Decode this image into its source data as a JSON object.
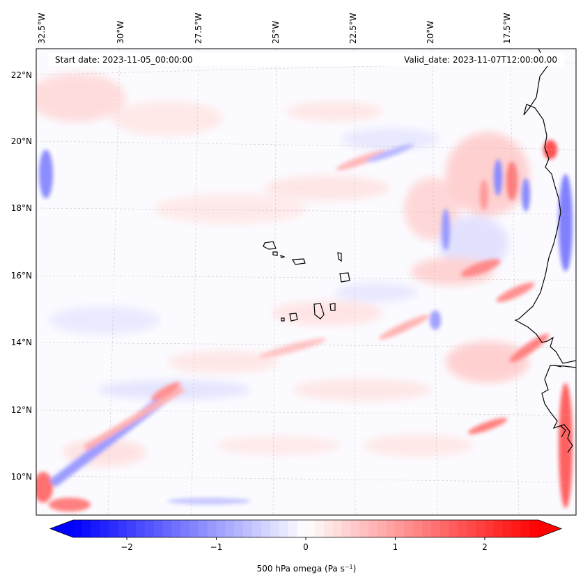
{
  "map": {
    "start_date_label": "Start date: 2023-11-05_00:00:00",
    "valid_date_label": "Valid_date: 2023-11-07T12:00:00.00",
    "lon_labels": [
      "32.5°W",
      "30°W",
      "27.5°W",
      "25°W",
      "22.5°W",
      "20°W",
      "17.5°W"
    ],
    "lat_labels": [
      "22°N",
      "20°N",
      "18°N",
      "16°N",
      "14°N",
      "12°N",
      "10°N"
    ],
    "colors": {
      "positive": "#ff0000",
      "negative": "#0000ff",
      "neutral": "#ffffff",
      "coastline": "#000000"
    }
  },
  "colorbar": {
    "min": -2.6,
    "max": 2.6,
    "tick_values": [
      -2,
      -1,
      0,
      1,
      2
    ],
    "tick_labels": [
      "−2",
      "−1",
      "0",
      "1",
      "2"
    ],
    "label_main": "500 hPa omega (Pa s",
    "label_sup": "−1",
    "label_end": ")"
  }
}
